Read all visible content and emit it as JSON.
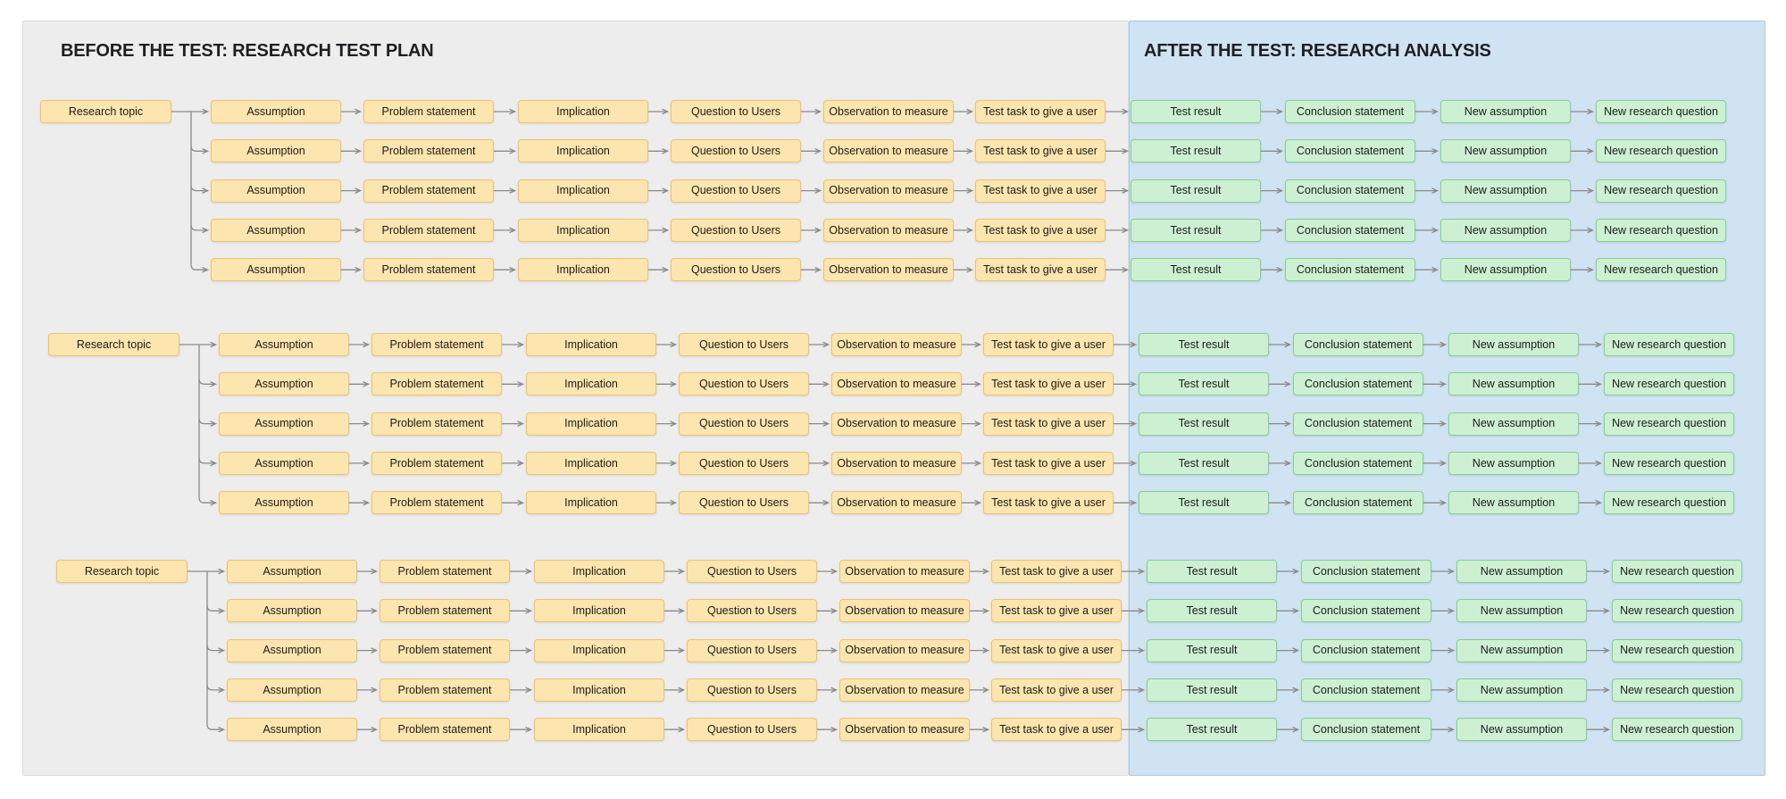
{
  "panels": {
    "before": {
      "title": "BEFORE THE TEST: RESEARCH TEST PLAN"
    },
    "after": {
      "title": "AFTER THE TEST: RESEARCH ANALYSIS"
    }
  },
  "labels": {
    "topic": "Research topic",
    "chain": [
      "Assumption",
      "Problem statement",
      "Implication",
      "Question to Users",
      "Observation to measure",
      "Test task to give a user",
      "Test result",
      "Conclusion statement",
      "New assumption",
      "New research question"
    ]
  },
  "structure": {
    "groups": 3,
    "rows_per_group": 5,
    "before_chain_count": 6,
    "after_chain_count": 4
  },
  "colors": {
    "page_bg": "#FFFFFF",
    "before_panel_bg": "#EDEDED",
    "before_panel_border": "#DCDCDC",
    "after_panel_bg": "#CFE3F3",
    "after_panel_border": "#A8C9E4",
    "before_node_fill": "#FCE5AE",
    "before_node_border": "#EEC272",
    "after_node_fill": "#CDF0D2",
    "after_node_border": "#84CF90",
    "connector": "#8A8A8A",
    "title_text": "#1E1F22",
    "node_text": "#1C1C1C"
  }
}
